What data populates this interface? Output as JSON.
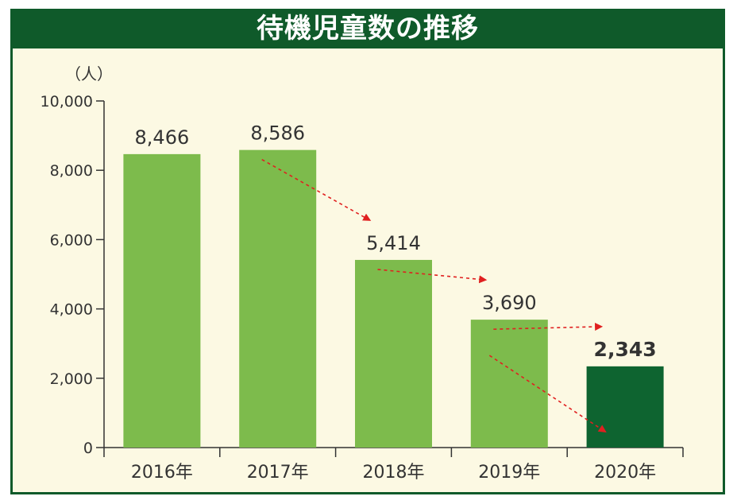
{
  "chart_data": {
    "type": "bar",
    "title": "待機児童数の推移",
    "unit_label": "（人）",
    "categories": [
      "2016年",
      "2017年",
      "2018年",
      "2019年",
      "2020年"
    ],
    "values": [
      8466,
      8586,
      5414,
      3690,
      2343
    ],
    "value_labels": [
      "8,466",
      "8,586",
      "5,414",
      "3,690",
      "2,343"
    ],
    "highlight_index": 4,
    "ylim": [
      0,
      10000
    ],
    "yticks": [
      0,
      2000,
      4000,
      6000,
      8000,
      10000
    ],
    "ytick_labels": [
      "0",
      "2,000",
      "4,000",
      "6,000",
      "8,000",
      "10,000"
    ],
    "bar_color": "#7dbb4c",
    "highlight_color": "#0e6430",
    "trend_arrow_color": "#e02020",
    "grid": false
  }
}
